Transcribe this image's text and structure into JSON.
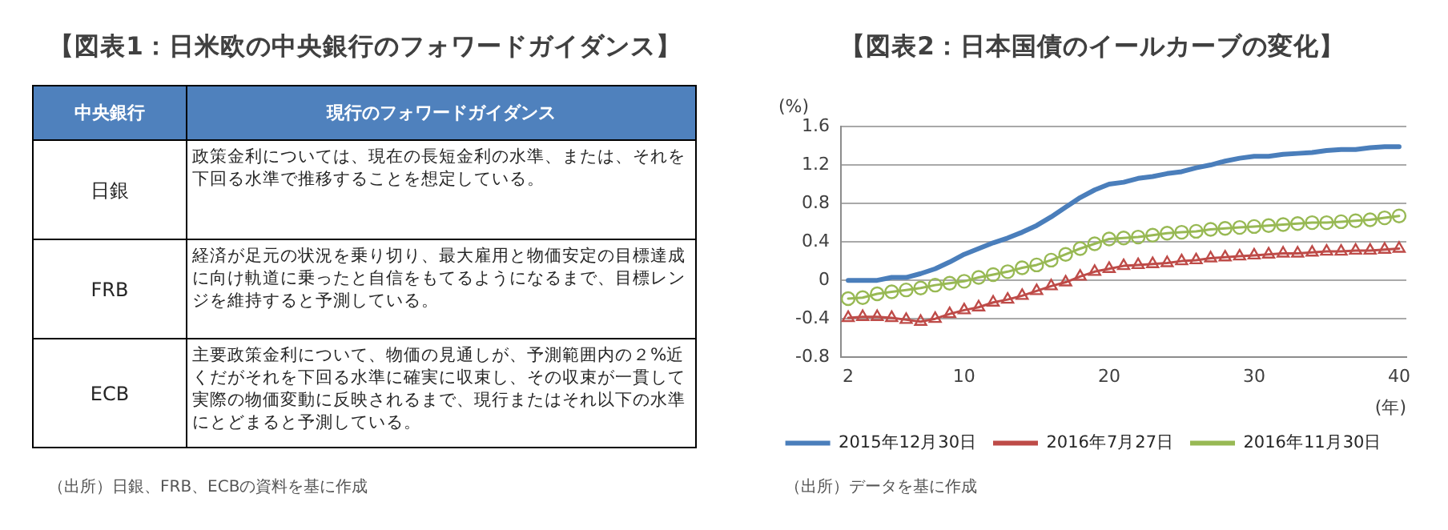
{
  "chart_data": [
    {
      "type": "other",
      "title": "【図表1：日米欧の中央銀行のフォワードガイダンス】",
      "annotations": [
        "中央銀行",
        "現行のフォワードガイダンス",
        "日銀",
        "政策金利については、現在の長短金利の水準、または、それを下回る水準で推移することを想定している。",
        "FRB",
        "経済が足元の状況を乗り切り、最大雇用と物価安定の目標達成に向け軌道に乗ったと自信をもてるようになるまで、目標レンジを維持すると予測している。",
        "ECB",
        "主要政策金利について、物価の見通しが、予測範囲内の２%近くだがそれを下回る水準に確実に収束し、その収束が一貫して実際の物価変動に反映されるまで、現行またはそれ以下の水準にとどまると予測している。",
        "（出所）日銀、FRB、ECBの資料を基に作成"
      ]
    },
    {
      "type": "line",
      "title": "【図表2：日本国債のイールカーブの変化】",
      "xlabel": "(年)",
      "ylabel": "(%)",
      "categories": [
        "2",
        null,
        null,
        null,
        null,
        null,
        null,
        null,
        "10",
        null,
        null,
        null,
        null,
        null,
        null,
        null,
        null,
        null,
        "20",
        null,
        null,
        null,
        null,
        null,
        null,
        null,
        null,
        null,
        "30",
        null,
        null,
        null,
        null,
        null,
        null,
        null,
        null,
        null,
        "40"
      ],
      "series": [
        {
          "name": "2015年12月30日",
          "color": "#4a7ebb",
          "marker": "none",
          "values": [
            0.0,
            0.0,
            0.0,
            0.03,
            0.03,
            0.07,
            0.12,
            0.19,
            0.27,
            0.33,
            0.39,
            0.44,
            0.5,
            0.57,
            0.66,
            0.76,
            0.86,
            0.94,
            1.0,
            1.02,
            1.06,
            1.08,
            1.11,
            1.13,
            1.17,
            1.2,
            1.24,
            1.27,
            1.29,
            1.29,
            1.31,
            1.32,
            1.33,
            1.35,
            1.36,
            1.36,
            1.38,
            1.39,
            1.39
          ]
        },
        {
          "name": "2016年7月27日",
          "color": "#be4b48",
          "marker": "triangle",
          "values": [
            -0.39,
            -0.38,
            -0.38,
            -0.39,
            -0.41,
            -0.43,
            -0.4,
            -0.35,
            -0.31,
            -0.28,
            -0.23,
            -0.2,
            -0.16,
            -0.11,
            -0.06,
            -0.02,
            0.04,
            0.09,
            0.12,
            0.15,
            0.16,
            0.17,
            0.18,
            0.2,
            0.21,
            0.23,
            0.24,
            0.25,
            0.26,
            0.27,
            0.28,
            0.28,
            0.29,
            0.3,
            0.3,
            0.31,
            0.31,
            0.32,
            0.33
          ]
        },
        {
          "name": "2016年11月30日",
          "color": "#98b954",
          "marker": "circle",
          "values": [
            -0.19,
            -0.18,
            -0.14,
            -0.12,
            -0.1,
            -0.08,
            -0.05,
            -0.03,
            -0.01,
            0.03,
            0.06,
            0.09,
            0.13,
            0.16,
            0.21,
            0.27,
            0.33,
            0.38,
            0.43,
            0.44,
            0.45,
            0.47,
            0.49,
            0.5,
            0.51,
            0.53,
            0.54,
            0.55,
            0.56,
            0.57,
            0.58,
            0.59,
            0.6,
            0.6,
            0.61,
            0.62,
            0.63,
            0.65,
            0.67
          ]
        }
      ],
      "ylim": [
        -0.8,
        1.6
      ],
      "yticks": [
        -0.8,
        -0.4,
        0,
        0.4,
        0.8,
        1.2,
        1.6
      ],
      "grid": "y",
      "legend": "bottom",
      "annotations": [
        "（出所）データを基に作成"
      ]
    }
  ]
}
